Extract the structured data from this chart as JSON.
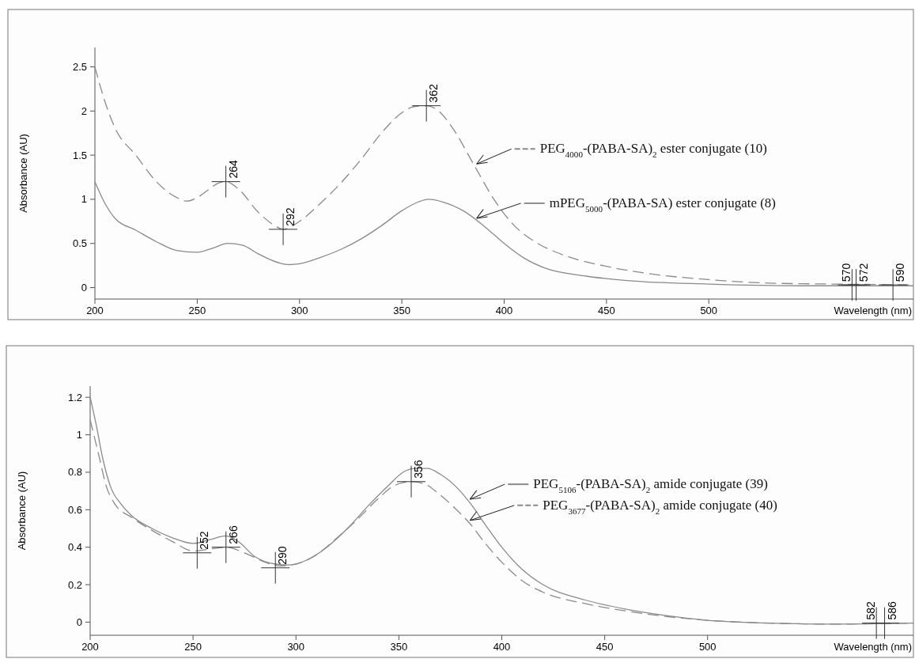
{
  "chart_data": [
    {
      "type": "line",
      "xlabel": "Wavelength (nm)",
      "ylabel": "Absorbance (AU)",
      "xlim": [
        200,
        600
      ],
      "ylim": [
        -0.13,
        2.72
      ],
      "xticks": [
        200,
        250,
        300,
        350,
        400,
        450,
        500
      ],
      "yticks": [
        0,
        0.5,
        1,
        1.5,
        2,
        2.5
      ],
      "legend": "right",
      "series": [
        {
          "name": "PEG$_{4000}$-(PABA-SA)$_{2}$ ester conjugate (10)",
          "color": "#8a8a8a",
          "line_style": "dashed",
          "x": [
            200,
            205,
            210,
            220,
            230,
            240,
            245,
            250,
            255,
            260,
            264,
            270,
            280,
            288,
            292,
            300,
            310,
            320,
            330,
            340,
            350,
            356,
            362,
            368,
            375,
            385,
            395,
            405,
            415,
            430,
            450,
            470,
            500,
            530,
            560,
            600
          ],
          "values": [
            2.5,
            2.1,
            1.8,
            1.5,
            1.2,
            1.02,
            0.98,
            1.02,
            1.1,
            1.18,
            1.2,
            1.12,
            0.85,
            0.7,
            0.66,
            0.75,
            0.95,
            1.18,
            1.45,
            1.75,
            1.98,
            2.05,
            2.06,
            2.0,
            1.8,
            1.4,
            1.0,
            0.7,
            0.52,
            0.36,
            0.24,
            0.16,
            0.09,
            0.05,
            0.04,
            0.03
          ]
        },
        {
          "name": "mPEG$_{5000}$-(PABA-SA) ester conjugate (8)",
          "color": "#8a8a8a",
          "line_style": "solid",
          "x": [
            200,
            205,
            210,
            220,
            230,
            240,
            250,
            258,
            265,
            272,
            280,
            290,
            295,
            300,
            310,
            320,
            330,
            340,
            350,
            358,
            363,
            370,
            380,
            390,
            400,
            410,
            420,
            440,
            460,
            500,
            550,
            600
          ],
          "values": [
            1.2,
            0.95,
            0.78,
            0.65,
            0.52,
            0.42,
            0.4,
            0.45,
            0.5,
            0.48,
            0.38,
            0.28,
            0.26,
            0.27,
            0.34,
            0.43,
            0.55,
            0.7,
            0.87,
            0.97,
            1.0,
            0.97,
            0.87,
            0.7,
            0.5,
            0.33,
            0.22,
            0.13,
            0.08,
            0.04,
            0.02,
            0.02
          ]
        }
      ],
      "annotations": [
        {
          "text": "264",
          "x": 264,
          "y": 1.2
        },
        {
          "text": "292",
          "x": 292,
          "y": 0.66
        },
        {
          "text": "362",
          "x": 362,
          "y": 2.06
        },
        {
          "text": "570",
          "x": 570,
          "y": 0.03
        },
        {
          "text": "572",
          "x": 572,
          "y": 0.03
        },
        {
          "text": "590",
          "x": 590,
          "y": 0.03
        }
      ]
    },
    {
      "type": "line",
      "xlabel": "Wavelength (nm)",
      "ylabel": "Absorbance (AU)",
      "xlim": [
        200,
        600
      ],
      "ylim": [
        -0.07,
        1.26
      ],
      "xticks": [
        200,
        250,
        300,
        350,
        400,
        450,
        500
      ],
      "yticks": [
        0,
        0.2,
        0.4,
        0.6,
        0.8,
        1,
        1.2
      ],
      "legend": "right",
      "series": [
        {
          "name": "PEG$_{5106}$-(PABA-SA)$_{2}$ amide conjugate (39)",
          "color": "#8a8a8a",
          "line_style": "solid",
          "x": [
            200,
            203,
            206,
            210,
            215,
            220,
            230,
            240,
            250,
            258,
            266,
            272,
            280,
            290,
            297,
            305,
            315,
            325,
            335,
            345,
            352,
            358,
            364,
            370,
            378,
            385,
            392,
            400,
            410,
            420,
            440,
            460,
            480,
            500,
            530,
            560,
            600
          ],
          "values": [
            1.2,
            1.05,
            0.88,
            0.72,
            0.63,
            0.57,
            0.5,
            0.45,
            0.42,
            0.44,
            0.46,
            0.43,
            0.35,
            0.31,
            0.305,
            0.33,
            0.4,
            0.5,
            0.62,
            0.73,
            0.8,
            0.82,
            0.82,
            0.79,
            0.72,
            0.63,
            0.52,
            0.4,
            0.28,
            0.2,
            0.12,
            0.07,
            0.035,
            0.01,
            -0.005,
            -0.01,
            -0.005
          ]
        },
        {
          "name": "PEG$_{3677}$-(PABA-SA)$_{2}$ amide conjugate (40)",
          "color": "#8a8a8a",
          "line_style": "dashed",
          "x": [
            200,
            204,
            208,
            212,
            220,
            230,
            240,
            250,
            258,
            266,
            275,
            285,
            292,
            300,
            310,
            320,
            330,
            340,
            348,
            356,
            362,
            370,
            378,
            385,
            392,
            400,
            410,
            420,
            440,
            460,
            480,
            500,
            530,
            560,
            600
          ],
          "values": [
            1.08,
            0.9,
            0.72,
            0.63,
            0.56,
            0.49,
            0.43,
            0.38,
            0.39,
            0.4,
            0.37,
            0.32,
            0.3,
            0.31,
            0.36,
            0.45,
            0.55,
            0.66,
            0.73,
            0.75,
            0.74,
            0.68,
            0.6,
            0.52,
            0.42,
            0.32,
            0.22,
            0.16,
            0.1,
            0.06,
            0.03,
            0.01,
            -0.005,
            -0.01,
            -0.005
          ]
        }
      ],
      "annotations": [
        {
          "text": "252",
          "x": 252,
          "y": 0.37
        },
        {
          "text": "266",
          "x": 266,
          "y": 0.4
        },
        {
          "text": "290",
          "x": 290,
          "y": 0.29
        },
        {
          "text": "356",
          "x": 356,
          "y": 0.75
        },
        {
          "text": "582",
          "x": 582,
          "y": -0.005
        },
        {
          "text": "586",
          "x": 586,
          "y": -0.005
        }
      ]
    }
  ]
}
